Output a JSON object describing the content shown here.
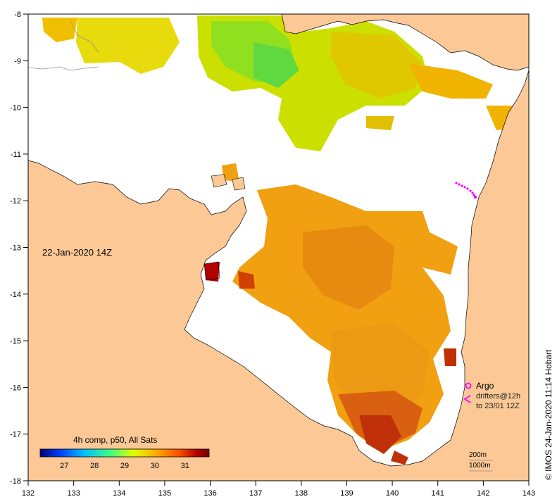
{
  "map": {
    "date_label": "22-Jan-2020 14Z",
    "composite_label": "4h comp, p50, All Sats",
    "credit": "© IMOS 24-Jan-2020 11:14 Hobart",
    "x_ticks": [
      "132",
      "133",
      "134",
      "135",
      "136",
      "137",
      "138",
      "139",
      "140",
      "141",
      "142",
      "143"
    ],
    "y_ticks": [
      "-8",
      "-9",
      "-10",
      "-11",
      "-12",
      "-13",
      "-14",
      "-15",
      "-16",
      "-17",
      "-18"
    ],
    "colorbar": {
      "ticks": [
        "27",
        "28",
        "29",
        "30",
        "31"
      ],
      "range": [
        26.2,
        31.8
      ],
      "colors": [
        "#06007a",
        "#0040ff",
        "#00c0ff",
        "#40ff80",
        "#e0ff00",
        "#ffb000",
        "#ff5000",
        "#b00000",
        "#700000"
      ]
    },
    "legend": {
      "argo_label": "Argo",
      "drifters_label": "drifters@12h",
      "to_label": "to 23/01 12Z",
      "depth_200": "200m",
      "depth_1000": "1000m"
    },
    "colors": {
      "land": "#fbc896",
      "ocean": "#ffffff",
      "argo": "#ff00ff"
    }
  }
}
